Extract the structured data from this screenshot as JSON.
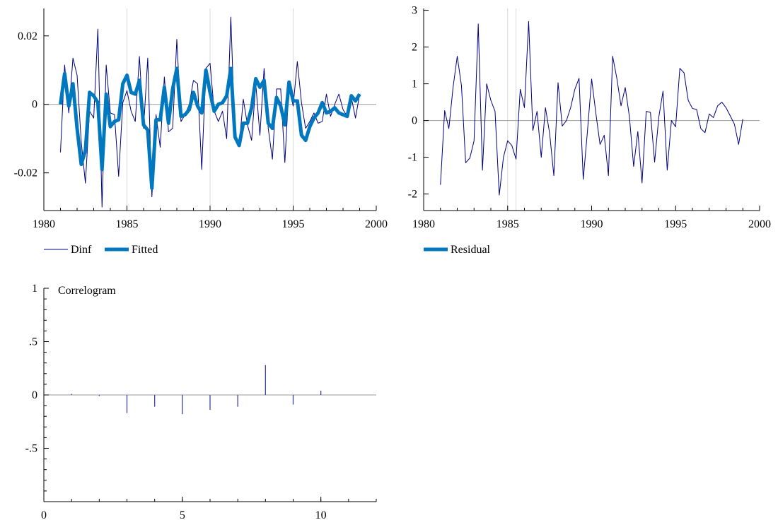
{
  "colors": {
    "actual_line": "#000080",
    "fitted_line": "#0078C0",
    "residual_line": "#000080",
    "bars": "#4040A0",
    "axis": "#000000",
    "zero_line": "#999999",
    "gridline": "#D8D8D8"
  },
  "chart_data": [
    {
      "type": "line",
      "panel": "top-left",
      "title": "",
      "xlabel": "",
      "ylabel": "",
      "xlim": [
        1980,
        2000
      ],
      "ylim": [
        -0.031,
        0.028
      ],
      "xticks": [
        1980,
        1985,
        1990,
        1995,
        2000
      ],
      "yticks": [
        {
          "value": 0.02,
          "label": "0.02"
        },
        {
          "value": 0,
          "label": "0"
        },
        {
          "value": -0.02,
          "label": "-0.02"
        }
      ],
      "vlines": [
        1985,
        1990,
        1995
      ],
      "legend_position": "bottom-left",
      "series": [
        {
          "name": "Dinf",
          "style": "thin",
          "x_start": 1981.0,
          "x_step": 0.25,
          "values": [
            -0.014,
            0.0115,
            -0.0025,
            0.0135,
            0.0085,
            -0.011,
            -0.023,
            -0.002,
            -0.004,
            0.022,
            -0.03,
            0.0115,
            -0.0025,
            -0.003,
            -0.021,
            0.0005,
            0.004,
            -0.002,
            -0.005,
            0.014,
            -0.007,
            0.0135,
            -0.027,
            -0.003,
            -0.0125,
            0.008,
            -0.008,
            -0.007,
            0.019,
            -0.005,
            -0.003,
            0.0,
            0.007,
            0.006,
            -0.019,
            0.0105,
            0.012,
            -0.002,
            -0.005,
            -0.002,
            -0.01,
            0.0255,
            -0.01,
            -0.012,
            0.0015,
            -0.006,
            -0.0105,
            0.006,
            -0.009,
            0.0105,
            -0.007,
            -0.016,
            0.0045,
            0.0045,
            -0.017,
            0.0055,
            -0.0005,
            0.0125,
            0.0005,
            -0.007,
            -0.005,
            -0.0025,
            -0.0055,
            -0.005,
            0.003,
            -0.0035,
            0.0,
            0.003,
            -0.0015,
            -0.0035,
            0.002,
            -0.004,
            0.003
          ]
        },
        {
          "name": "Fitted",
          "style": "thick",
          "x_start": 1981.0,
          "x_step": 0.25,
          "values": [
            0.0,
            0.009,
            -0.0005,
            0.006,
            -0.007,
            -0.0175,
            -0.0135,
            0.0035,
            0.0025,
            0.0005,
            -0.019,
            0.003,
            -0.0065,
            -0.005,
            -0.0045,
            0.006,
            0.0085,
            0.0035,
            0.003,
            0.007,
            -0.006,
            -0.0075,
            -0.0245,
            -0.0045,
            -0.0045,
            0.005,
            -0.0055,
            0.0045,
            0.0105,
            -0.0035,
            -0.003,
            -0.0015,
            0.0035,
            -0.0005,
            -0.0025,
            0.01,
            0.0035,
            -0.002,
            0.0,
            0.0005,
            0.0025,
            0.0105,
            -0.0095,
            -0.012,
            -0.0055,
            -0.0055,
            -0.001,
            0.0075,
            0.005,
            0.007,
            -0.0055,
            -0.007,
            0.002,
            -0.0005,
            -0.006,
            0.0065,
            0.001,
            0.001,
            -0.009,
            -0.0105,
            -0.0065,
            -0.004,
            -0.0025,
            0.0005,
            -0.0025,
            -0.002,
            -0.001,
            -0.0025,
            -0.003,
            -0.0035,
            0.0025,
            0.001,
            0.003
          ]
        }
      ]
    },
    {
      "type": "line",
      "panel": "top-right",
      "title": "",
      "xlabel": "",
      "ylabel": "",
      "xlim": [
        1980,
        2000
      ],
      "ylim": [
        -2.45,
        3.05
      ],
      "xticks": [
        1980,
        1985,
        1990,
        1995,
        2000
      ],
      "yticks": [
        {
          "value": 3,
          "label": "3"
        },
        {
          "value": 2,
          "label": "2"
        },
        {
          "value": 1,
          "label": "1"
        },
        {
          "value": 0,
          "label": "0"
        },
        {
          "value": -1,
          "label": "-1"
        },
        {
          "value": -2,
          "label": "-2"
        }
      ],
      "vlines": [
        1985,
        1985.5
      ],
      "legend_position": "bottom-left",
      "series": [
        {
          "name": "Residual",
          "style": "thin",
          "x_start": 1981.0,
          "x_step": 0.25,
          "values": [
            -1.75,
            0.27,
            -0.22,
            0.9,
            1.75,
            0.95,
            -1.15,
            -1.02,
            -0.55,
            2.63,
            -1.35,
            1.0,
            0.55,
            0.25,
            -2.03,
            -1.0,
            -0.55,
            -0.68,
            -1.05,
            0.85,
            0.35,
            2.7,
            -0.27,
            0.25,
            -1.0,
            0.35,
            -0.35,
            -1.5,
            1.03,
            -0.15,
            0.0,
            0.35,
            0.85,
            1.15,
            -1.6,
            -0.3,
            1.13,
            0.2,
            -0.65,
            -0.4,
            -1.5,
            1.75,
            1.15,
            0.4,
            0.9,
            0.1,
            -1.25,
            -0.3,
            -1.7,
            0.25,
            0.22,
            -1.13,
            0.1,
            0.8,
            -1.35,
            0.0,
            -0.17,
            1.42,
            1.3,
            0.55,
            0.33,
            0.3,
            -0.22,
            -0.33,
            0.18,
            0.08,
            0.4,
            0.5,
            0.35,
            0.13,
            -0.1,
            -0.65,
            0.04
          ]
        }
      ]
    },
    {
      "type": "bar",
      "panel": "bottom-left",
      "title": "Correlogram",
      "xlabel": "",
      "ylabel": "",
      "xlim": [
        0,
        12
      ],
      "ylim": [
        -1,
        1
      ],
      "xticks": [
        {
          "value": 0,
          "label": "0"
        },
        {
          "value": 5,
          "label": "5"
        },
        {
          "value": 10,
          "label": "10"
        }
      ],
      "yticks": [
        {
          "value": 1,
          "label": "1"
        },
        {
          "value": 0.5,
          "label": ".5"
        },
        {
          "value": 0,
          "label": "0"
        },
        {
          "value": -0.5,
          "label": "-.5"
        }
      ],
      "lags": [
        1,
        2,
        3,
        4,
        5,
        6,
        7,
        8,
        9,
        10
      ],
      "values": [
        0.01,
        -0.01,
        -0.17,
        -0.11,
        -0.18,
        -0.14,
        -0.11,
        0.28,
        -0.09,
        0.04
      ]
    }
  ]
}
